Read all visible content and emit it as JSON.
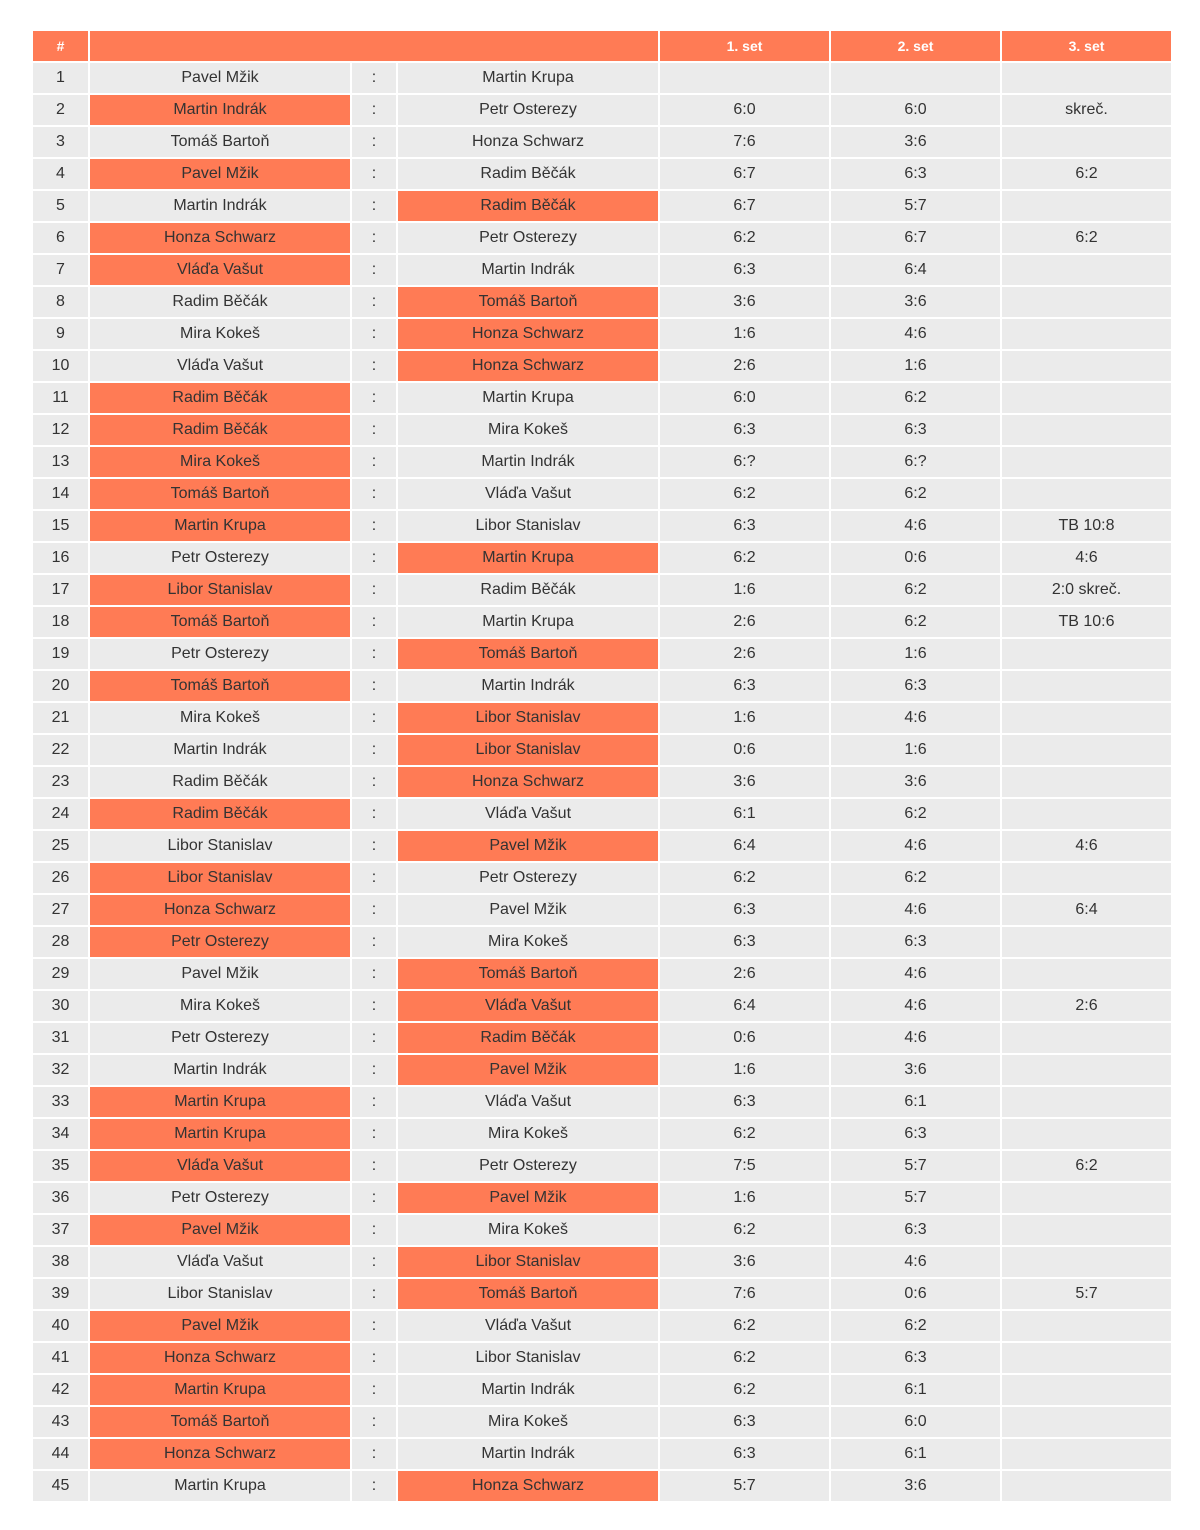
{
  "header": {
    "num": "#",
    "match": "",
    "set1": "1. set",
    "set2": "2. set",
    "set3": "3. set"
  },
  "separator": ":",
  "colors": {
    "header": "#ff7b55",
    "winner": "#ff7b55",
    "cell": "#ebebeb"
  },
  "matches": [
    {
      "n": "1",
      "p1": "Pavel Mžik",
      "p2": "Martin Krupa",
      "s1": "",
      "s2": "",
      "s3": "",
      "w": 0
    },
    {
      "n": "2",
      "p1": "Martin Indrák",
      "p2": "Petr Osterezy",
      "s1": "6:0",
      "s2": "6:0",
      "s3": "skreč.",
      "w": 1
    },
    {
      "n": "3",
      "p1": "Tomáš Bartoň",
      "p2": "Honza Schwarz",
      "s1": "7:6",
      "s2": "3:6",
      "s3": "",
      "w": 0
    },
    {
      "n": "4",
      "p1": "Pavel Mžik",
      "p2": "Radim Běčák",
      "s1": "6:7",
      "s2": "6:3",
      "s3": "6:2",
      "w": 1
    },
    {
      "n": "5",
      "p1": "Martin Indrák",
      "p2": "Radim Běčák",
      "s1": "6:7",
      "s2": "5:7",
      "s3": "",
      "w": 2
    },
    {
      "n": "6",
      "p1": "Honza Schwarz",
      "p2": "Petr Osterezy",
      "s1": "6:2",
      "s2": "6:7",
      "s3": "6:2",
      "w": 1
    },
    {
      "n": "7",
      "p1": "Vláďa Vašut",
      "p2": "Martin Indrák",
      "s1": "6:3",
      "s2": "6:4",
      "s3": "",
      "w": 1
    },
    {
      "n": "8",
      "p1": "Radim Běčák",
      "p2": "Tomáš Bartoň",
      "s1": "3:6",
      "s2": "3:6",
      "s3": "",
      "w": 2
    },
    {
      "n": "9",
      "p1": "Mira Kokeš",
      "p2": "Honza Schwarz",
      "s1": "1:6",
      "s2": "4:6",
      "s3": "",
      "w": 2
    },
    {
      "n": "10",
      "p1": "Vláďa Vašut",
      "p2": "Honza Schwarz",
      "s1": "2:6",
      "s2": "1:6",
      "s3": "",
      "w": 2
    },
    {
      "n": "11",
      "p1": "Radim Běčák",
      "p2": "Martin Krupa",
      "s1": "6:0",
      "s2": "6:2",
      "s3": "",
      "w": 1
    },
    {
      "n": "12",
      "p1": "Radim Běčák",
      "p2": "Mira Kokeš",
      "s1": "6:3",
      "s2": "6:3",
      "s3": "",
      "w": 1
    },
    {
      "n": "13",
      "p1": "Mira Kokeš",
      "p2": "Martin Indrák",
      "s1": "6:?",
      "s2": "6:?",
      "s3": "",
      "w": 1
    },
    {
      "n": "14",
      "p1": "Tomáš Bartoň",
      "p2": "Vláďa Vašut",
      "s1": "6:2",
      "s2": "6:2",
      "s3": "",
      "w": 1
    },
    {
      "n": "15",
      "p1": "Martin Krupa",
      "p2": "Libor Stanislav",
      "s1": "6:3",
      "s2": "4:6",
      "s3": "TB 10:8",
      "w": 1
    },
    {
      "n": "16",
      "p1": "Petr Osterezy",
      "p2": "Martin Krupa",
      "s1": "6:2",
      "s2": "0:6",
      "s3": "4:6",
      "w": 2
    },
    {
      "n": "17",
      "p1": "Libor Stanislav",
      "p2": "Radim Běčák",
      "s1": "1:6",
      "s2": "6:2",
      "s3": "2:0 skreč.",
      "w": 1
    },
    {
      "n": "18",
      "p1": "Tomáš Bartoň",
      "p2": "Martin Krupa",
      "s1": "2:6",
      "s2": "6:2",
      "s3": "TB 10:6",
      "w": 1
    },
    {
      "n": "19",
      "p1": "Petr Osterezy",
      "p2": "Tomáš Bartoň",
      "s1": "2:6",
      "s2": "1:6",
      "s3": "",
      "w": 2
    },
    {
      "n": "20",
      "p1": "Tomáš Bartoň",
      "p2": "Martin Indrák",
      "s1": "6:3",
      "s2": "6:3",
      "s3": "",
      "w": 1
    },
    {
      "n": "21",
      "p1": "Mira Kokeš",
      "p2": "Libor Stanislav",
      "s1": "1:6",
      "s2": "4:6",
      "s3": "",
      "w": 2
    },
    {
      "n": "22",
      "p1": "Martin Indrák",
      "p2": "Libor Stanislav",
      "s1": "0:6",
      "s2": "1:6",
      "s3": "",
      "w": 2
    },
    {
      "n": "23",
      "p1": "Radim Běčák",
      "p2": "Honza Schwarz",
      "s1": "3:6",
      "s2": "3:6",
      "s3": "",
      "w": 2
    },
    {
      "n": "24",
      "p1": "Radim Běčák",
      "p2": "Vláďa Vašut",
      "s1": "6:1",
      "s2": "6:2",
      "s3": "",
      "w": 1
    },
    {
      "n": "25",
      "p1": "Libor Stanislav",
      "p2": "Pavel Mžik",
      "s1": "6:4",
      "s2": "4:6",
      "s3": "4:6",
      "w": 2
    },
    {
      "n": "26",
      "p1": "Libor Stanislav",
      "p2": "Petr Osterezy",
      "s1": "6:2",
      "s2": "6:2",
      "s3": "",
      "w": 1
    },
    {
      "n": "27",
      "p1": "Honza Schwarz",
      "p2": "Pavel Mžik",
      "s1": "6:3",
      "s2": "4:6",
      "s3": "6:4",
      "w": 1
    },
    {
      "n": "28",
      "p1": "Petr Osterezy",
      "p2": "Mira Kokeš",
      "s1": "6:3",
      "s2": "6:3",
      "s3": "",
      "w": 1
    },
    {
      "n": "29",
      "p1": "Pavel Mžik",
      "p2": "Tomáš Bartoň",
      "s1": "2:6",
      "s2": "4:6",
      "s3": "",
      "w": 2
    },
    {
      "n": "30",
      "p1": "Mira Kokeš",
      "p2": "Vláďa Vašut",
      "s1": "6:4",
      "s2": "4:6",
      "s3": "2:6",
      "w": 2
    },
    {
      "n": "31",
      "p1": "Petr Osterezy",
      "p2": "Radim Běčák",
      "s1": "0:6",
      "s2": "4:6",
      "s3": "",
      "w": 2
    },
    {
      "n": "32",
      "p1": "Martin Indrák",
      "p2": "Pavel Mžik",
      "s1": "1:6",
      "s2": "3:6",
      "s3": "",
      "w": 2
    },
    {
      "n": "33",
      "p1": "Martin Krupa",
      "p2": "Vláďa Vašut",
      "s1": "6:3",
      "s2": "6:1",
      "s3": "",
      "w": 1
    },
    {
      "n": "34",
      "p1": "Martin Krupa",
      "p2": "Mira Kokeš",
      "s1": "6:2",
      "s2": "6:3",
      "s3": "",
      "w": 1
    },
    {
      "n": "35",
      "p1": "Vláďa Vašut",
      "p2": "Petr Osterezy",
      "s1": "7:5",
      "s2": "5:7",
      "s3": "6:2",
      "w": 1
    },
    {
      "n": "36",
      "p1": "Petr Osterezy",
      "p2": "Pavel Mžik",
      "s1": "1:6",
      "s2": "5:7",
      "s3": "",
      "w": 2
    },
    {
      "n": "37",
      "p1": "Pavel Mžik",
      "p2": "Mira Kokeš",
      "s1": "6:2",
      "s2": "6:3",
      "s3": "",
      "w": 1
    },
    {
      "n": "38",
      "p1": "Vláďa Vašut",
      "p2": "Libor Stanislav",
      "s1": "3:6",
      "s2": "4:6",
      "s3": "",
      "w": 2
    },
    {
      "n": "39",
      "p1": "Libor Stanislav",
      "p2": "Tomáš Bartoň",
      "s1": "7:6",
      "s2": "0:6",
      "s3": "5:7",
      "w": 2
    },
    {
      "n": "40",
      "p1": "Pavel Mžik",
      "p2": "Vláďa Vašut",
      "s1": "6:2",
      "s2": "6:2",
      "s3": "",
      "w": 1
    },
    {
      "n": "41",
      "p1": "Honza Schwarz",
      "p2": "Libor Stanislav",
      "s1": "6:2",
      "s2": "6:3",
      "s3": "",
      "w": 1
    },
    {
      "n": "42",
      "p1": "Martin Krupa",
      "p2": "Martin Indrák",
      "s1": "6:2",
      "s2": "6:1",
      "s3": "",
      "w": 1
    },
    {
      "n": "43",
      "p1": "Tomáš Bartoň",
      "p2": "Mira Kokeš",
      "s1": "6:3",
      "s2": "6:0",
      "s3": "",
      "w": 1
    },
    {
      "n": "44",
      "p1": "Honza Schwarz",
      "p2": "Martin Indrák",
      "s1": "6:3",
      "s2": "6:1",
      "s3": "",
      "w": 1
    },
    {
      "n": "45",
      "p1": "Martin Krupa",
      "p2": "Honza Schwarz",
      "s1": "5:7",
      "s2": "3:6",
      "s3": "",
      "w": 2
    }
  ]
}
